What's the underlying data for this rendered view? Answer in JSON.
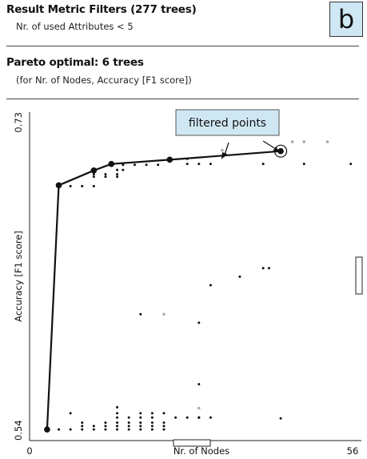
{
  "header": {
    "filter_title": "Result Metric Filters (277 trees)",
    "filter_rule": "Nr. of used Attributes < 5",
    "pareto_title": "Pareto optimal: 6 trees",
    "pareto_subtitle": "(for Nr. of Nodes, Accuracy [F1 score])",
    "panel_letter": "b"
  },
  "colors": {
    "callout_bg": "#cfe7f3",
    "pareto_line": "#111111",
    "filtered_point": "#aaaaaa",
    "point": "#111111"
  },
  "chart_data": {
    "type": "scatter",
    "title": "",
    "xlabel": "Nr. of Nodes",
    "ylabel": "Accuracy [F1 score]",
    "xlim": [
      0,
      56
    ],
    "ylim": [
      0.54,
      0.73
    ],
    "x_ticks": [
      "0",
      "56"
    ],
    "y_ticks": [
      "0.54",
      "0.73"
    ],
    "annotation": "filtered points",
    "pareto_front": [
      {
        "x": 3,
        "y": 0.5465
      },
      {
        "x": 5,
        "y": 0.6895
      },
      {
        "x": 11,
        "y": 0.6982
      },
      {
        "x": 14,
        "y": 0.702
      },
      {
        "x": 24,
        "y": 0.7045
      },
      {
        "x": 43,
        "y": 0.7095
      }
    ],
    "highlighted_point": {
      "x": 43,
      "y": 0.7095
    },
    "points": [
      {
        "x": 5,
        "y": 0.5465
      },
      {
        "x": 7,
        "y": 0.5465
      },
      {
        "x": 9,
        "y": 0.5465
      },
      {
        "x": 11,
        "y": 0.5465
      },
      {
        "x": 13,
        "y": 0.5465
      },
      {
        "x": 15,
        "y": 0.5465
      },
      {
        "x": 17,
        "y": 0.5465
      },
      {
        "x": 19,
        "y": 0.5465
      },
      {
        "x": 21,
        "y": 0.5465
      },
      {
        "x": 23,
        "y": 0.5465
      },
      {
        "x": 9,
        "y": 0.5485
      },
      {
        "x": 11,
        "y": 0.5485
      },
      {
        "x": 13,
        "y": 0.5485
      },
      {
        "x": 15,
        "y": 0.5485
      },
      {
        "x": 17,
        "y": 0.5485
      },
      {
        "x": 19,
        "y": 0.5485
      },
      {
        "x": 21,
        "y": 0.5485
      },
      {
        "x": 23,
        "y": 0.5485
      },
      {
        "x": 9,
        "y": 0.5505
      },
      {
        "x": 13,
        "y": 0.5505
      },
      {
        "x": 15,
        "y": 0.5505
      },
      {
        "x": 17,
        "y": 0.5505
      },
      {
        "x": 19,
        "y": 0.5505
      },
      {
        "x": 21,
        "y": 0.5505
      },
      {
        "x": 23,
        "y": 0.5505
      },
      {
        "x": 15,
        "y": 0.5535
      },
      {
        "x": 17,
        "y": 0.5535
      },
      {
        "x": 19,
        "y": 0.5535
      },
      {
        "x": 21,
        "y": 0.5535
      },
      {
        "x": 25,
        "y": 0.5535
      },
      {
        "x": 27,
        "y": 0.5535
      },
      {
        "x": 29,
        "y": 0.5535
      },
      {
        "x": 31,
        "y": 0.5535
      },
      {
        "x": 43,
        "y": 0.553
      },
      {
        "x": 7,
        "y": 0.556
      },
      {
        "x": 15,
        "y": 0.556
      },
      {
        "x": 19,
        "y": 0.556
      },
      {
        "x": 21,
        "y": 0.556
      },
      {
        "x": 23,
        "y": 0.556
      },
      {
        "x": 15,
        "y": 0.5595
      },
      {
        "x": 29,
        "y": 0.573
      },
      {
        "x": 29,
        "y": 0.609
      },
      {
        "x": 19,
        "y": 0.614
      },
      {
        "x": 31,
        "y": 0.631
      },
      {
        "x": 36,
        "y": 0.636
      },
      {
        "x": 40,
        "y": 0.641
      },
      {
        "x": 41,
        "y": 0.641
      },
      {
        "x": 7,
        "y": 0.689
      },
      {
        "x": 9,
        "y": 0.689
      },
      {
        "x": 11,
        "y": 0.689
      },
      {
        "x": 11,
        "y": 0.6945
      },
      {
        "x": 13,
        "y": 0.6945
      },
      {
        "x": 15,
        "y": 0.6945
      },
      {
        "x": 11,
        "y": 0.696
      },
      {
        "x": 13,
        "y": 0.696
      },
      {
        "x": 15,
        "y": 0.696
      },
      {
        "x": 15,
        "y": 0.6985
      },
      {
        "x": 16,
        "y": 0.6985
      },
      {
        "x": 16,
        "y": 0.7015
      },
      {
        "x": 18,
        "y": 0.7015
      },
      {
        "x": 20,
        "y": 0.7015
      },
      {
        "x": 22,
        "y": 0.7015
      },
      {
        "x": 27,
        "y": 0.702
      },
      {
        "x": 29,
        "y": 0.702
      },
      {
        "x": 31,
        "y": 0.702
      },
      {
        "x": 27,
        "y": 0.705
      },
      {
        "x": 40,
        "y": 0.702
      },
      {
        "x": 47,
        "y": 0.702
      },
      {
        "x": 55,
        "y": 0.702
      }
    ],
    "filtered_points": [
      {
        "x": 33,
        "y": 0.71
      },
      {
        "x": 45,
        "y": 0.715
      },
      {
        "x": 47,
        "y": 0.715
      },
      {
        "x": 51,
        "y": 0.715
      },
      {
        "x": 23,
        "y": 0.614
      },
      {
        "x": 29,
        "y": 0.559
      },
      {
        "x": 29,
        "y": 0.5535
      }
    ]
  }
}
